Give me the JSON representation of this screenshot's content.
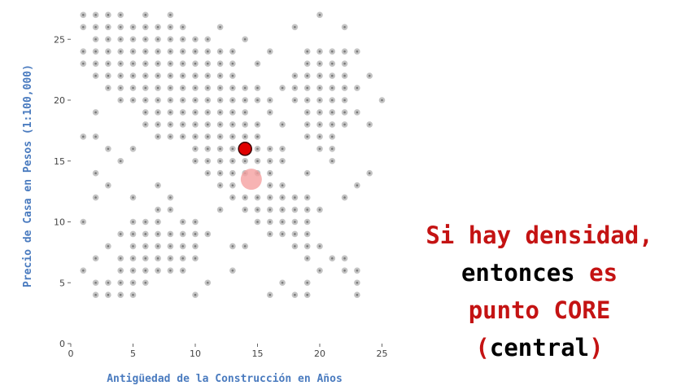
{
  "chart_data": {
    "type": "scatter",
    "title": "",
    "xlabel": "Antigüedad de la Construcción en Años",
    "ylabel": "Precio de Casa en Pesos (1:100,000)",
    "xlim": [
      0,
      25
    ],
    "ylim": [
      0,
      27
    ],
    "xticks": [
      0,
      5,
      10,
      15,
      20,
      25
    ],
    "yticks": [
      0,
      5,
      10,
      15,
      20,
      25
    ],
    "grid": false,
    "colors": {
      "points": "#c4c4c4",
      "core": "#e00000",
      "halo": "#f5a0a0"
    },
    "series": [
      {
        "points": [
          [
            1,
            27
          ],
          [
            2,
            27
          ],
          [
            3,
            27
          ],
          [
            4,
            27
          ],
          [
            6,
            27
          ],
          [
            8,
            27
          ],
          [
            20,
            27
          ],
          [
            1,
            26
          ],
          [
            2,
            26
          ],
          [
            3,
            26
          ],
          [
            4,
            26
          ],
          [
            5,
            26
          ],
          [
            6,
            26
          ],
          [
            7,
            26
          ],
          [
            8,
            26
          ],
          [
            9,
            26
          ],
          [
            12,
            26
          ],
          [
            18,
            26
          ],
          [
            22,
            26
          ],
          [
            2,
            25
          ],
          [
            3,
            25
          ],
          [
            4,
            25
          ],
          [
            5,
            25
          ],
          [
            6,
            25
          ],
          [
            7,
            25
          ],
          [
            8,
            25
          ],
          [
            9,
            25
          ],
          [
            10,
            25
          ],
          [
            11,
            25
          ],
          [
            14,
            25
          ],
          [
            1,
            24
          ],
          [
            2,
            24
          ],
          [
            3,
            24
          ],
          [
            4,
            24
          ],
          [
            5,
            24
          ],
          [
            6,
            24
          ],
          [
            7,
            24
          ],
          [
            8,
            24
          ],
          [
            9,
            24
          ],
          [
            10,
            24
          ],
          [
            11,
            24
          ],
          [
            12,
            24
          ],
          [
            13,
            24
          ],
          [
            16,
            24
          ],
          [
            19,
            24
          ],
          [
            20,
            24
          ],
          [
            21,
            24
          ],
          [
            22,
            24
          ],
          [
            23,
            24
          ],
          [
            1,
            23
          ],
          [
            2,
            23
          ],
          [
            3,
            23
          ],
          [
            4,
            23
          ],
          [
            5,
            23
          ],
          [
            6,
            23
          ],
          [
            7,
            23
          ],
          [
            8,
            23
          ],
          [
            9,
            23
          ],
          [
            10,
            23
          ],
          [
            11,
            23
          ],
          [
            12,
            23
          ],
          [
            13,
            23
          ],
          [
            15,
            23
          ],
          [
            19,
            23
          ],
          [
            20,
            23
          ],
          [
            21,
            23
          ],
          [
            22,
            23
          ],
          [
            2,
            22
          ],
          [
            3,
            22
          ],
          [
            4,
            22
          ],
          [
            5,
            22
          ],
          [
            6,
            22
          ],
          [
            7,
            22
          ],
          [
            8,
            22
          ],
          [
            9,
            22
          ],
          [
            10,
            22
          ],
          [
            11,
            22
          ],
          [
            12,
            22
          ],
          [
            13,
            22
          ],
          [
            18,
            22
          ],
          [
            19,
            22
          ],
          [
            20,
            22
          ],
          [
            21,
            22
          ],
          [
            22,
            22
          ],
          [
            24,
            22
          ],
          [
            3,
            21
          ],
          [
            4,
            21
          ],
          [
            5,
            21
          ],
          [
            6,
            21
          ],
          [
            7,
            21
          ],
          [
            8,
            21
          ],
          [
            9,
            21
          ],
          [
            10,
            21
          ],
          [
            11,
            21
          ],
          [
            12,
            21
          ],
          [
            13,
            21
          ],
          [
            14,
            21
          ],
          [
            15,
            21
          ],
          [
            17,
            21
          ],
          [
            18,
            21
          ],
          [
            19,
            21
          ],
          [
            20,
            21
          ],
          [
            21,
            21
          ],
          [
            22,
            21
          ],
          [
            23,
            21
          ],
          [
            4,
            20
          ],
          [
            5,
            20
          ],
          [
            6,
            20
          ],
          [
            7,
            20
          ],
          [
            8,
            20
          ],
          [
            9,
            20
          ],
          [
            10,
            20
          ],
          [
            11,
            20
          ],
          [
            12,
            20
          ],
          [
            13,
            20
          ],
          [
            14,
            20
          ],
          [
            15,
            20
          ],
          [
            16,
            20
          ],
          [
            18,
            20
          ],
          [
            19,
            20
          ],
          [
            20,
            20
          ],
          [
            21,
            20
          ],
          [
            22,
            20
          ],
          [
            25,
            20
          ],
          [
            2,
            19
          ],
          [
            6,
            19
          ],
          [
            7,
            19
          ],
          [
            8,
            19
          ],
          [
            9,
            19
          ],
          [
            10,
            19
          ],
          [
            11,
            19
          ],
          [
            12,
            19
          ],
          [
            13,
            19
          ],
          [
            14,
            19
          ],
          [
            16,
            19
          ],
          [
            19,
            19
          ],
          [
            20,
            19
          ],
          [
            21,
            19
          ],
          [
            22,
            19
          ],
          [
            23,
            19
          ],
          [
            6,
            18
          ],
          [
            7,
            18
          ],
          [
            8,
            18
          ],
          [
            9,
            18
          ],
          [
            10,
            18
          ],
          [
            11,
            18
          ],
          [
            12,
            18
          ],
          [
            13,
            18
          ],
          [
            14,
            18
          ],
          [
            15,
            18
          ],
          [
            17,
            18
          ],
          [
            19,
            18
          ],
          [
            20,
            18
          ],
          [
            21,
            18
          ],
          [
            22,
            18
          ],
          [
            24,
            18
          ],
          [
            7,
            17
          ],
          [
            8,
            17
          ],
          [
            9,
            17
          ],
          [
            10,
            17
          ],
          [
            11,
            17
          ],
          [
            12,
            17
          ],
          [
            13,
            17
          ],
          [
            14,
            17
          ],
          [
            15,
            17
          ],
          [
            19,
            17
          ],
          [
            20,
            17
          ],
          [
            21,
            17
          ],
          [
            1,
            17
          ],
          [
            2,
            17
          ],
          [
            3,
            16
          ],
          [
            5,
            16
          ],
          [
            10,
            16
          ],
          [
            11,
            16
          ],
          [
            12,
            16
          ],
          [
            13,
            16
          ],
          [
            15,
            16
          ],
          [
            16,
            16
          ],
          [
            17,
            16
          ],
          [
            20,
            16
          ],
          [
            21,
            16
          ],
          [
            4,
            15
          ],
          [
            10,
            15
          ],
          [
            11,
            15
          ],
          [
            12,
            15
          ],
          [
            13,
            15
          ],
          [
            14,
            15
          ],
          [
            15,
            15
          ],
          [
            16,
            15
          ],
          [
            17,
            15
          ],
          [
            21,
            15
          ],
          [
            2,
            14
          ],
          [
            11,
            14
          ],
          [
            12,
            14
          ],
          [
            13,
            14
          ],
          [
            14,
            14
          ],
          [
            15,
            14
          ],
          [
            16,
            14
          ],
          [
            19,
            14
          ],
          [
            24,
            14
          ],
          [
            3,
            13
          ],
          [
            7,
            13
          ],
          [
            12,
            13
          ],
          [
            13,
            13
          ],
          [
            16,
            13
          ],
          [
            17,
            13
          ],
          [
            23,
            13
          ],
          [
            2,
            12
          ],
          [
            5,
            12
          ],
          [
            8,
            12
          ],
          [
            13,
            12
          ],
          [
            14,
            12
          ],
          [
            15,
            12
          ],
          [
            16,
            12
          ],
          [
            17,
            12
          ],
          [
            18,
            12
          ],
          [
            19,
            12
          ],
          [
            22,
            12
          ],
          [
            7,
            11
          ],
          [
            8,
            11
          ],
          [
            12,
            11
          ],
          [
            14,
            11
          ],
          [
            15,
            11
          ],
          [
            16,
            11
          ],
          [
            17,
            11
          ],
          [
            18,
            11
          ],
          [
            19,
            11
          ],
          [
            20,
            11
          ],
          [
            1,
            10
          ],
          [
            5,
            10
          ],
          [
            6,
            10
          ],
          [
            7,
            10
          ],
          [
            9,
            10
          ],
          [
            10,
            10
          ],
          [
            15,
            10
          ],
          [
            16,
            10
          ],
          [
            17,
            10
          ],
          [
            18,
            10
          ],
          [
            19,
            10
          ],
          [
            4,
            9
          ],
          [
            5,
            9
          ],
          [
            6,
            9
          ],
          [
            7,
            9
          ],
          [
            8,
            9
          ],
          [
            9,
            9
          ],
          [
            10,
            9
          ],
          [
            11,
            9
          ],
          [
            16,
            9
          ],
          [
            17,
            9
          ],
          [
            18,
            9
          ],
          [
            19,
            9
          ],
          [
            3,
            8
          ],
          [
            5,
            8
          ],
          [
            6,
            8
          ],
          [
            7,
            8
          ],
          [
            8,
            8
          ],
          [
            9,
            8
          ],
          [
            10,
            8
          ],
          [
            13,
            8
          ],
          [
            14,
            8
          ],
          [
            18,
            8
          ],
          [
            19,
            8
          ],
          [
            20,
            8
          ],
          [
            2,
            7
          ],
          [
            4,
            7
          ],
          [
            5,
            7
          ],
          [
            6,
            7
          ],
          [
            7,
            7
          ],
          [
            8,
            7
          ],
          [
            9,
            7
          ],
          [
            10,
            7
          ],
          [
            19,
            7
          ],
          [
            21,
            7
          ],
          [
            22,
            7
          ],
          [
            1,
            6
          ],
          [
            4,
            6
          ],
          [
            5,
            6
          ],
          [
            6,
            6
          ],
          [
            7,
            6
          ],
          [
            8,
            6
          ],
          [
            9,
            6
          ],
          [
            13,
            6
          ],
          [
            20,
            6
          ],
          [
            22,
            6
          ],
          [
            23,
            6
          ],
          [
            2,
            5
          ],
          [
            3,
            5
          ],
          [
            4,
            5
          ],
          [
            5,
            5
          ],
          [
            6,
            5
          ],
          [
            11,
            5
          ],
          [
            17,
            5
          ],
          [
            19,
            5
          ],
          [
            23,
            5
          ],
          [
            2,
            4
          ],
          [
            3,
            4
          ],
          [
            4,
            4
          ],
          [
            5,
            4
          ],
          [
            10,
            4
          ],
          [
            16,
            4
          ],
          [
            18,
            4
          ],
          [
            19,
            4
          ],
          [
            23,
            4
          ]
        ]
      }
    ],
    "highlight": {
      "core_point": [
        14,
        16
      ],
      "halo_point": [
        14.5,
        13.5
      ]
    }
  },
  "caption": {
    "line1": "Si hay densidad,",
    "line2a": "entonces ",
    "line2b": "es",
    "line3": "punto CORE",
    "line4a": "(",
    "line4b": "central",
    "line4c": ")"
  }
}
